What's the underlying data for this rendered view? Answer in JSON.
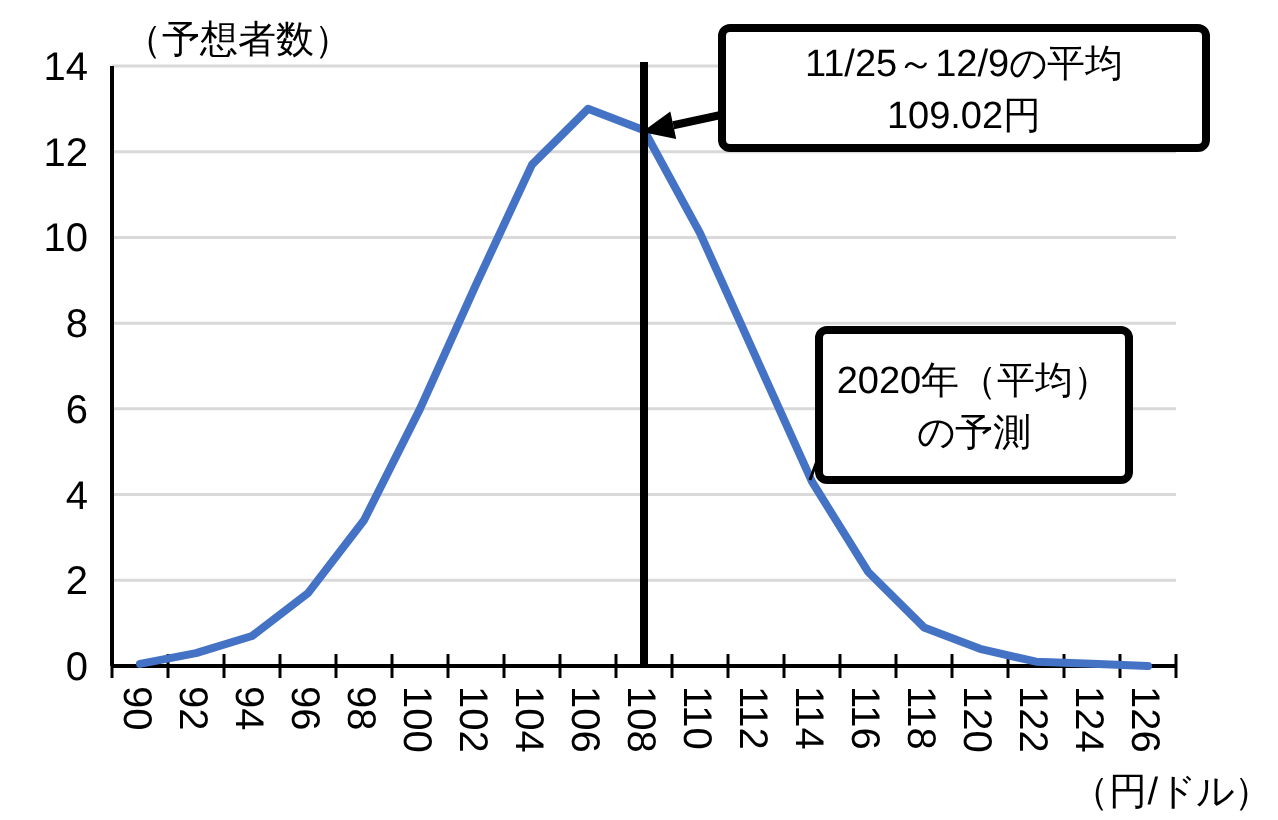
{
  "chart_data": {
    "type": "line",
    "ylabel": "（予想者数）",
    "xlabel": "（円/ドル）",
    "categories": [
      "90",
      "92",
      "94",
      "96",
      "98",
      "100",
      "102",
      "104",
      "106",
      "108",
      "110",
      "112",
      "114",
      "116",
      "118",
      "120",
      "122",
      "124",
      "126"
    ],
    "series": [
      {
        "color": "#4472c4",
        "values": [
          0.05,
          0.3,
          0.7,
          1.7,
          3.4,
          6.0,
          8.9,
          11.7,
          13.0,
          12.5,
          10.1,
          7.2,
          4.3,
          2.2,
          0.9,
          0.4,
          0.1,
          0.05,
          0.0
        ]
      }
    ],
    "ylim": [
      0,
      14
    ],
    "yticks": [
      0,
      2,
      4,
      6,
      8,
      10,
      12,
      14
    ],
    "grid": "y",
    "marker": "none",
    "line_style": "solid",
    "ref_lines": [
      {
        "axis": "x",
        "value": "108",
        "color": "#000000"
      }
    ],
    "annotations": [
      "11/25～12/9の平均\n109.02円",
      "2020年（平均）の予測"
    ]
  }
}
